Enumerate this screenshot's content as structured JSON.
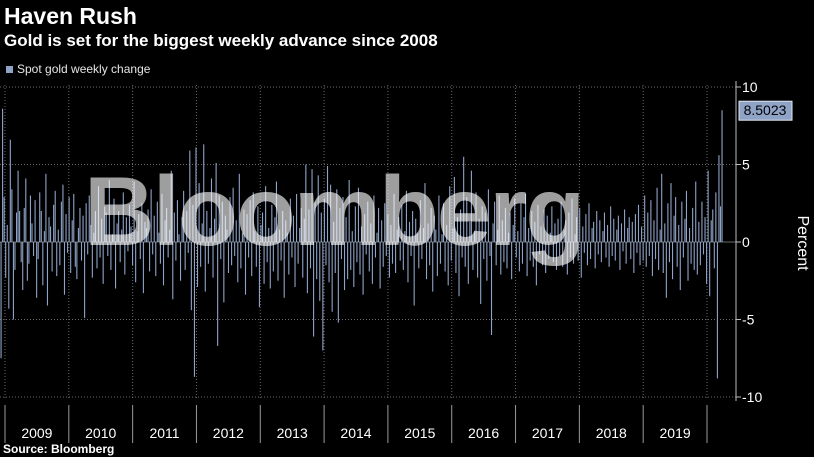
{
  "header": {
    "title": "Haven Rush",
    "subtitle": "Gold is set for the biggest weekly advance since 2008"
  },
  "footer": {
    "source": "Source: Bloomberg"
  },
  "watermark": {
    "text": "Bloomberg"
  },
  "colors": {
    "background": "#000000",
    "bar": "#8ea3c6",
    "grid": "#6a6a6a",
    "callout_bg": "#8ea3c6",
    "text": "#ffffff"
  },
  "chart_data": {
    "type": "bar",
    "title": "Haven Rush",
    "subtitle": "Gold is set for the biggest weekly advance since 2008",
    "ylabel": "Percent",
    "xlabel": "",
    "ylim": [
      -10,
      10
    ],
    "yticks": [
      10,
      5,
      0,
      -5,
      -10
    ],
    "xticks": [
      "2009",
      "2010",
      "2011",
      "2012",
      "2013",
      "2014",
      "2015",
      "2016",
      "2017",
      "2018",
      "2019"
    ],
    "legend": {
      "position": "top-left",
      "entries": [
        "Spot gold weekly change"
      ]
    },
    "grid": true,
    "last_value_label": "8.5023",
    "series": [
      {
        "name": "Spot gold weekly change",
        "x_start": "2008-12",
        "x_end": "2020-03",
        "frequency": "weekly",
        "values": [
          -7.5,
          8.6,
          2.9,
          -2.3,
          1.1,
          -4.3,
          6.6,
          3.4,
          -5.0,
          -1.8,
          1.9,
          4.6,
          2.0,
          -1.3,
          -3.1,
          2.2,
          4.1,
          -2.5,
          -1.4,
          3.0,
          1.2,
          -0.9,
          2.7,
          -3.6,
          -1.1,
          3.2,
          2.0,
          -2.8,
          0.7,
          4.4,
          -4.1,
          1.6,
          1.0,
          -1.9,
          2.4,
          3.3,
          -2.2,
          0.8,
          -1.5,
          2.6,
          3.7,
          -3.4,
          1.8,
          -0.7,
          2.9,
          -2.0,
          1.4,
          3.1,
          -1.6,
          -2.4,
          0.9,
          2.2,
          -1.2,
          1.7,
          -4.9,
          2.5,
          -0.8,
          3.0,
          1.1,
          -2.3,
          0.6,
          2.0,
          -1.7,
          3.6,
          -1.0,
          1.5,
          -2.7,
          2.3,
          1.9,
          -0.9,
          4.0,
          -1.8,
          0.5,
          2.8,
          -3.0,
          1.2,
          2.0,
          -1.3,
          0.8,
          3.2,
          -2.1,
          1.6,
          -0.6,
          2.4,
          1.0,
          -1.5,
          3.9,
          -2.6,
          0.7,
          1.8,
          -1.1,
          2.5,
          -3.3,
          1.3,
          0.9,
          2.1,
          -1.9,
          3.4,
          -0.8,
          1.7,
          -2.2,
          2.6,
          0.6,
          -1.4,
          3.1,
          -2.8,
          1.4,
          2.2,
          -1.0,
          0.8,
          4.6,
          -3.7,
          1.9,
          -1.2,
          2.7,
          0.5,
          -2.5,
          1.6,
          3.3,
          -1.8,
          2.0,
          -0.7,
          5.9,
          -4.4,
          2.4,
          -8.7,
          6.1,
          -2.9,
          3.8,
          -1.6,
          1.2,
          6.3,
          -3.2,
          2.0,
          -1.4,
          0.9,
          4.1,
          -2.3,
          1.5,
          5.1,
          -6.7,
          3.0,
          -1.1,
          2.6,
          -3.9,
          1.7,
          0.8,
          -2.0,
          2.9,
          -1.5,
          3.5,
          -0.9,
          1.4,
          -2.6,
          4.4,
          -1.7,
          0.6,
          2.1,
          -3.4,
          1.8,
          -1.0,
          2.7,
          -2.2,
          3.2,
          0.7,
          -1.6,
          2.3,
          -4.2,
          1.1,
          1.9,
          -2.7,
          3.6,
          -1.3,
          0.9,
          -3.0,
          2.4,
          -1.9,
          1.6,
          3.9,
          -2.5,
          0.8,
          -1.2,
          2.0,
          -3.6,
          1.4,
          0.6,
          -2.1,
          2.8,
          -1.0,
          1.7,
          -2.9,
          3.1,
          -1.4,
          0.9,
          2.2,
          -2.3,
          1.5,
          5.0,
          -3.3,
          2.1,
          -1.7,
          4.7,
          -6.1,
          2.6,
          -2.4,
          4.3,
          -3.8,
          1.9,
          -7.0,
          2.8,
          -1.5,
          4.9,
          -2.6,
          3.7,
          -4.5,
          1.3,
          -2.0,
          3.4,
          -5.2,
          2.2,
          -1.1,
          2.9,
          -3.1,
          1.6,
          -2.4,
          4.0,
          -1.8,
          0.7,
          -2.9,
          2.3,
          -1.3,
          3.5,
          -2.1,
          1.0,
          -3.4,
          1.8,
          -0.8,
          2.6,
          -1.9,
          1.2,
          -2.7,
          3.0,
          -1.0,
          0.6,
          2.2,
          -3.0,
          1.4,
          -1.6,
          2.5,
          -0.9,
          1.8,
          -2.3,
          1.1,
          -1.4,
          3.1,
          -2.0,
          0.8,
          1.6,
          -1.2,
          2.4,
          -1.8,
          0.7,
          3.3,
          -2.6,
          1.3,
          -0.9,
          2.0,
          -4.1,
          1.5,
          0.6,
          -1.7,
          2.7,
          -1.1,
          0.9,
          3.8,
          -2.4,
          1.2,
          -1.5,
          2.2,
          -3.2,
          1.7,
          0.8,
          -2.2,
          3.0,
          -1.4,
          0.5,
          2.5,
          -1.9,
          1.1,
          -2.8,
          3.6,
          -1.2,
          0.9,
          4.2,
          -2.0,
          1.6,
          -3.5,
          2.1,
          -1.0,
          5.5,
          -1.6,
          2.9,
          -2.7,
          1.3,
          4.6,
          -1.8,
          0.7,
          3.2,
          -2.3,
          1.5,
          -4.0,
          2.3,
          -1.1,
          1.9,
          -2.5,
          3.4,
          -0.9,
          -6.0,
          1.2,
          2.6,
          -1.5,
          0.8,
          3.0,
          -2.1,
          1.4,
          -1.3,
          2.2,
          -1.7,
          0.6,
          1.9,
          -2.4,
          1.1,
          2.8,
          -1.0,
          0.7,
          -1.9,
          2.5,
          -1.4,
          1.6,
          3.1,
          -2.2,
          0.9,
          -1.2,
          2.0,
          -1.6,
          1.3,
          -2.8,
          2.4,
          -0.8,
          1.0,
          -1.5,
          2.1,
          -2.0,
          1.7,
          -1.1,
          0.6,
          2.3,
          -1.3,
          1.2,
          -1.8,
          1.5,
          -0.9,
          2.6,
          -1.6,
          0.8,
          1.4,
          -2.1,
          1.9,
          -1.0,
          2.8,
          -1.4,
          0.5,
          1.6,
          -1.2,
          2.2,
          -2.3,
          1.0,
          -0.7,
          1.8,
          -1.5,
          2.5,
          -1.1,
          0.9,
          1.3,
          -1.7,
          2.0,
          -0.8,
          1.4,
          -1.3,
          0.7,
          1.9,
          -1.0,
          1.1,
          -1.6,
          2.3,
          -0.9,
          1.5,
          -1.2,
          0.8,
          1.7,
          -1.8,
          1.2,
          -0.6,
          2.1,
          -1.4,
          0.9,
          1.6,
          -1.1,
          1.3,
          -2.0,
          1.8,
          -0.7,
          2.4,
          -1.5,
          1.0,
          -1.2,
          3.0,
          -1.6,
          1.9,
          -0.9,
          2.7,
          -2.2,
          1.4,
          -1.1,
          3.5,
          -1.8,
          0.8,
          4.4,
          -2.0,
          1.2,
          -3.6,
          2.5,
          -1.3,
          3.8,
          -2.4,
          1.7,
          2.9,
          -1.6,
          1.1,
          -3.1,
          2.6,
          -1.0,
          1.5,
          3.3,
          -2.5,
          0.9,
          -1.4,
          2.2,
          -1.8,
          3.9,
          -2.1,
          1.3,
          -1.5,
          2.6,
          -0.8,
          1.6,
          -2.7,
          4.6,
          -3.5,
          1.4,
          2.1,
          -1.7,
          3.2,
          -8.8,
          5.6,
          2.3,
          8.5023
        ]
      }
    ]
  }
}
